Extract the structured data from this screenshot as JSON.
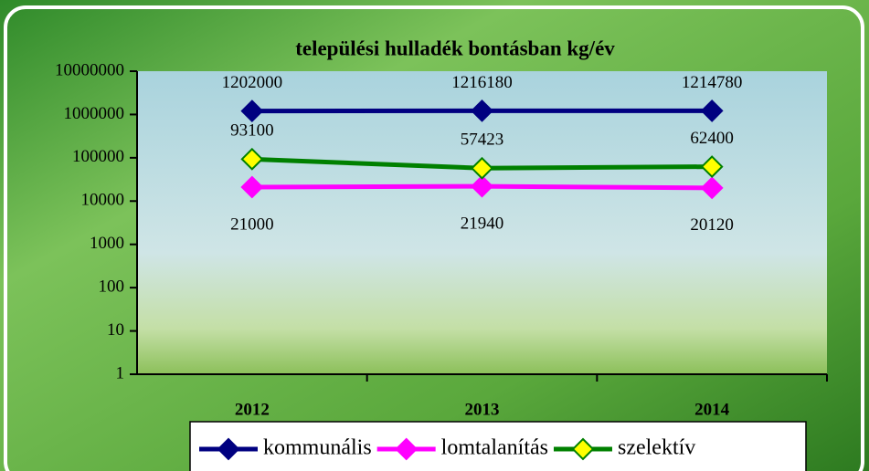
{
  "chart_data": {
    "type": "line",
    "title": "települési hulladék bontásban kg/év",
    "categories": [
      "2012",
      "2013",
      "2014"
    ],
    "series": [
      {
        "name": "kommunális",
        "color": "#000080",
        "values": [
          1202000,
          1216180,
          1214780
        ]
      },
      {
        "name": "lomtalanítás",
        "color": "#ff00ff",
        "values": [
          21000,
          21940,
          20120
        ]
      },
      {
        "name": "szelektív",
        "color": "#008000",
        "marker_color": "#ffff00",
        "values": [
          93100,
          57423,
          62400
        ]
      }
    ],
    "ylim": [
      1,
      10000000
    ],
    "yticks": [
      1,
      10,
      100,
      1000,
      10000,
      100000,
      1000000,
      10000000
    ],
    "log_scale": true,
    "legend": "bottom"
  }
}
